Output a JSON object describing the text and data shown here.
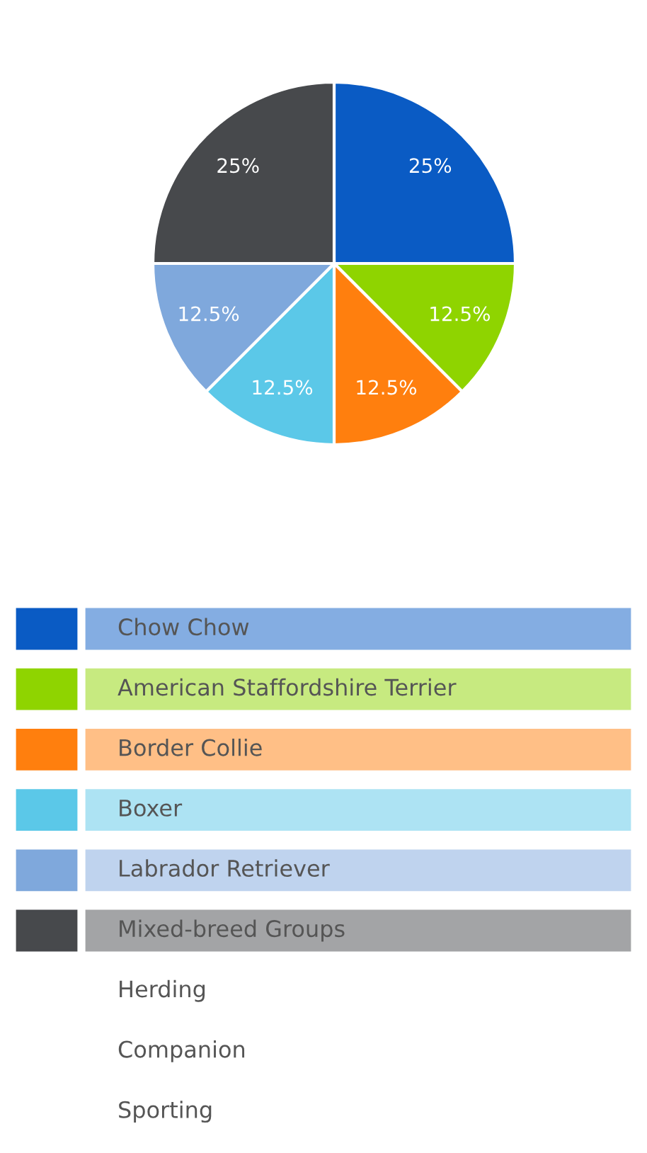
{
  "chart_data": {
    "type": "pie",
    "categories": [
      "Chow Chow",
      "American Staffordshire Terrier",
      "Border Collie",
      "Boxer",
      "Labrador Retriever",
      "Mixed-breed Groups"
    ],
    "values": [
      25,
      12.5,
      12.5,
      12.5,
      12.5,
      25
    ],
    "value_labels": [
      "25%",
      "12.5%",
      "12.5%",
      "12.5%",
      "12.5%",
      "25%"
    ],
    "colors": [
      "#0a5bc4",
      "#8fd400",
      "#ff7f0e",
      "#5bc8e8",
      "#7fa8dc",
      "#47494c"
    ],
    "legend": "bottom",
    "annotations": [
      "Herding",
      "Companion",
      "Sporting"
    ]
  }
}
